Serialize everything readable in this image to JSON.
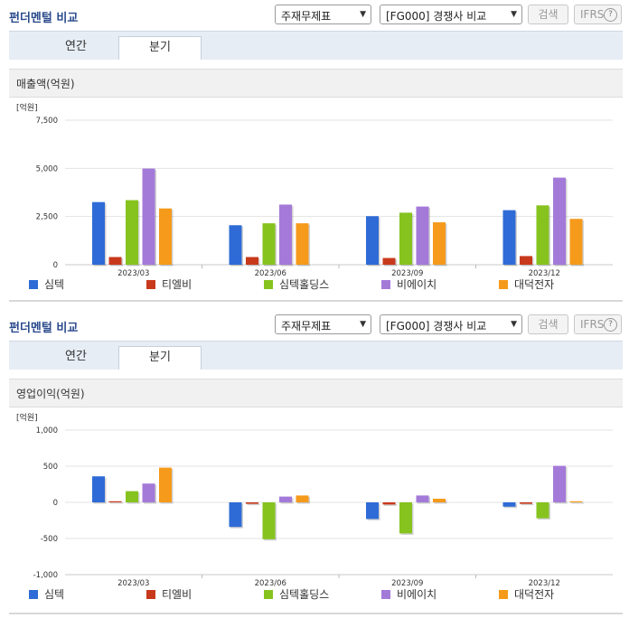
{
  "common": {
    "title": "펀더멘털 비교",
    "statement_select": "주재무제표",
    "group_select": "[FG000] 경쟁사 비교",
    "search_label": "검색",
    "ifrs_label": "IFRS",
    "help_label": "?",
    "tab_annual": "연간",
    "tab_quarter": "분기",
    "unit": "[억원]"
  },
  "charts": [
    {
      "section_title": "매출액(억원)"
    },
    {
      "section_title": "영업이익(억원)"
    }
  ],
  "chart_data": [
    {
      "type": "bar",
      "title": "매출액(억원)",
      "ylabel": "[억원]",
      "ylim": [
        0,
        7500
      ],
      "ticks": [
        0,
        2500,
        5000,
        7500
      ],
      "tick_labels": [
        "0",
        "2,500",
        "5,000",
        "7,500"
      ],
      "grid": true,
      "legend": "bottom",
      "categories": [
        "2023/03",
        "2023/06",
        "2023/09",
        "2023/12"
      ],
      "series": [
        {
          "name": "심텍",
          "color": "#2e6bd6",
          "values": [
            3250,
            2050,
            2520,
            2830
          ]
        },
        {
          "name": "티엘비",
          "color": "#c8391c",
          "values": [
            400,
            400,
            350,
            450
          ]
        },
        {
          "name": "심텍홀딩스",
          "color": "#86c31f",
          "values": [
            3350,
            2150,
            2700,
            3080
          ]
        },
        {
          "name": "비에이치",
          "color": "#a47ad9",
          "values": [
            4990,
            3120,
            3020,
            4520
          ]
        },
        {
          "name": "대덕전자",
          "color": "#f59a1a",
          "values": [
            2920,
            2150,
            2200,
            2380
          ]
        }
      ]
    },
    {
      "type": "bar",
      "title": "영업이익(억원)",
      "ylabel": "[억원]",
      "ylim": [
        -1000,
        1000
      ],
      "ticks": [
        -1000,
        -500,
        0,
        500,
        1000
      ],
      "tick_labels": [
        "-1,000",
        "-500",
        "0",
        "500",
        "1,000"
      ],
      "grid": true,
      "legend": "bottom",
      "categories": [
        "2023/03",
        "2023/06",
        "2023/09",
        "2023/12"
      ],
      "series": [
        {
          "name": "심텍",
          "color": "#2e6bd6",
          "values": [
            360,
            -340,
            -230,
            -60
          ]
        },
        {
          "name": "티엘비",
          "color": "#c8391c",
          "values": [
            15,
            -20,
            -30,
            -20
          ]
        },
        {
          "name": "심텍홀딩스",
          "color": "#86c31f",
          "values": [
            155,
            -510,
            -430,
            -220
          ]
        },
        {
          "name": "비에이치",
          "color": "#a47ad9",
          "values": [
            260,
            80,
            95,
            505
          ]
        },
        {
          "name": "대덕전자",
          "color": "#f59a1a",
          "values": [
            480,
            95,
            50,
            15
          ]
        }
      ]
    }
  ]
}
